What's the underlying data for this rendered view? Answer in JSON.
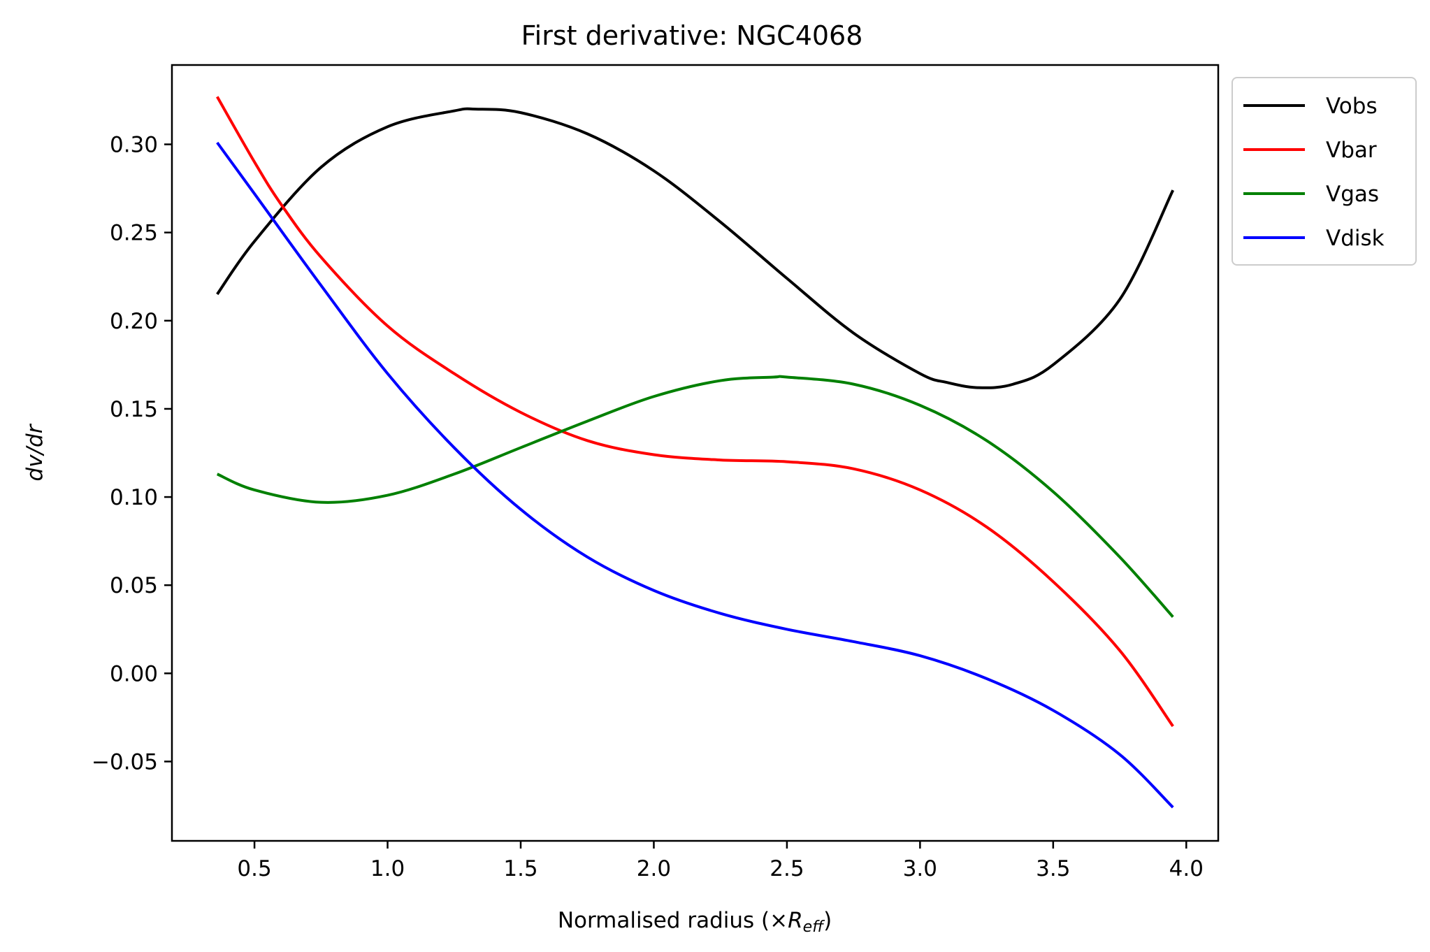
{
  "chart_data": {
    "type": "line",
    "title": "First derivative: NGC4068",
    "xlabel": {
      "main": "Normalised radius (×",
      "sym": "R",
      "sub": "eff",
      "close": ")"
    },
    "ylabel": "dv/dr",
    "xlim": [
      0.19,
      4.12
    ],
    "ylim": [
      -0.095,
      0.345
    ],
    "xticks": [
      0.5,
      1.0,
      1.5,
      2.0,
      2.5,
      3.0,
      3.5,
      4.0
    ],
    "xtick_labels": [
      "0.5",
      "1.0",
      "1.5",
      "2.0",
      "2.5",
      "3.0",
      "3.5",
      "4.0"
    ],
    "yticks": [
      -0.05,
      0.0,
      0.05,
      0.1,
      0.15,
      0.2,
      0.25,
      0.3
    ],
    "ytick_labels": [
      "−0.05",
      "0.00",
      "0.05",
      "0.10",
      "0.15",
      "0.20",
      "0.25",
      "0.30"
    ],
    "grid": false,
    "legend_position": "outside-top-right",
    "series": [
      {
        "name": "Vobs",
        "color": "#000000",
        "x": [
          0.36,
          0.5,
          0.75,
          1.0,
          1.25,
          1.33,
          1.5,
          1.75,
          2.0,
          2.25,
          2.5,
          2.75,
          3.0,
          3.1,
          3.22,
          3.35,
          3.5,
          3.75,
          3.95
        ],
        "y": [
          0.215,
          0.245,
          0.287,
          0.31,
          0.319,
          0.32,
          0.318,
          0.306,
          0.285,
          0.256,
          0.224,
          0.193,
          0.17,
          0.165,
          0.162,
          0.164,
          0.175,
          0.212,
          0.274
        ]
      },
      {
        "name": "Vbar",
        "color": "#ff0000",
        "x": [
          0.36,
          0.5,
          0.6,
          0.75,
          1.0,
          1.25,
          1.5,
          1.75,
          2.0,
          2.25,
          2.5,
          2.75,
          3.0,
          3.25,
          3.5,
          3.75,
          3.95
        ],
        "y": [
          0.327,
          0.29,
          0.266,
          0.236,
          0.197,
          0.17,
          0.148,
          0.132,
          0.124,
          0.121,
          0.12,
          0.116,
          0.104,
          0.083,
          0.052,
          0.013,
          -0.03
        ]
      },
      {
        "name": "Vgas",
        "color": "#008000",
        "x": [
          0.36,
          0.5,
          0.75,
          1.0,
          1.25,
          1.5,
          1.75,
          2.0,
          2.25,
          2.45,
          2.5,
          2.75,
          3.0,
          3.25,
          3.5,
          3.75,
          3.95
        ],
        "y": [
          0.113,
          0.104,
          0.097,
          0.101,
          0.113,
          0.128,
          0.143,
          0.157,
          0.166,
          0.168,
          0.168,
          0.164,
          0.152,
          0.132,
          0.103,
          0.066,
          0.032
        ]
      },
      {
        "name": "Vdisk",
        "color": "#0000ff",
        "x": [
          0.36,
          0.5,
          0.75,
          1.0,
          1.25,
          1.5,
          1.75,
          2.0,
          2.25,
          2.5,
          2.75,
          3.0,
          3.25,
          3.5,
          3.75,
          3.95
        ],
        "y": [
          0.301,
          0.272,
          0.22,
          0.17,
          0.128,
          0.093,
          0.066,
          0.047,
          0.034,
          0.025,
          0.018,
          0.01,
          -0.003,
          -0.021,
          -0.046,
          -0.076
        ]
      }
    ]
  }
}
